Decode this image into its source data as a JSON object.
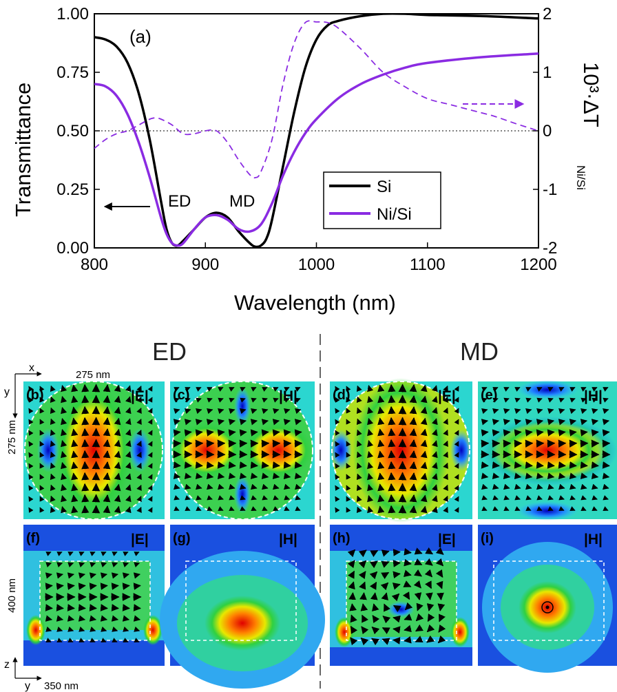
{
  "chart_data": {
    "type": "line",
    "panel_label": "(a)",
    "xlabel": "Wavelength (nm)",
    "ylabel": "Transmittance",
    "ylabel_right": "10³·ΔT",
    "ylabel_right_sub": "Ni/Si",
    "xlim": [
      800,
      1200
    ],
    "ylim": [
      0,
      1
    ],
    "ylim_right": [
      -2,
      2
    ],
    "x_ticks": [
      "800",
      "900",
      "1000",
      "1100",
      "1200"
    ],
    "y_ticks": [
      "0.00",
      "0.25",
      "0.50",
      "0.75",
      "1.00"
    ],
    "y_ticks_right": [
      "-2",
      "-1",
      "0",
      "1",
      "2"
    ],
    "legend_position": "inside-right",
    "annotations": [
      "ED",
      "MD"
    ],
    "series": [
      {
        "name": "Si",
        "color": "#000000",
        "axis": "left",
        "x": [
          800,
          810,
          820,
          830,
          840,
          850,
          860,
          865,
          870,
          875,
          880,
          890,
          900,
          910,
          920,
          930,
          940,
          945,
          950,
          955,
          960,
          970,
          980,
          990,
          1000,
          1010,
          1020,
          1040,
          1060,
          1080,
          1100,
          1150,
          1200
        ],
        "y": [
          0.9,
          0.89,
          0.86,
          0.79,
          0.66,
          0.46,
          0.2,
          0.08,
          0.02,
          0.01,
          0.03,
          0.08,
          0.13,
          0.15,
          0.13,
          0.07,
          0.02,
          0.005,
          0.01,
          0.04,
          0.12,
          0.35,
          0.58,
          0.77,
          0.89,
          0.95,
          0.97,
          0.99,
          1.0,
          1.0,
          0.995,
          0.99,
          0.98
        ]
      },
      {
        "name": "Ni/Si",
        "color": "#8a2be2",
        "axis": "left",
        "x": [
          800,
          810,
          820,
          830,
          840,
          850,
          860,
          865,
          870,
          875,
          880,
          890,
          900,
          910,
          920,
          930,
          940,
          950,
          960,
          970,
          980,
          990,
          1000,
          1020,
          1040,
          1060,
          1080,
          1100,
          1150,
          1200
        ],
        "y": [
          0.7,
          0.69,
          0.65,
          0.57,
          0.45,
          0.3,
          0.13,
          0.06,
          0.02,
          0.01,
          0.02,
          0.08,
          0.13,
          0.14,
          0.12,
          0.08,
          0.07,
          0.1,
          0.19,
          0.31,
          0.41,
          0.49,
          0.55,
          0.64,
          0.7,
          0.74,
          0.77,
          0.79,
          0.815,
          0.83
        ]
      },
      {
        "name": "",
        "color": "#8a2be2",
        "style": "dashed",
        "axis": "right",
        "x": [
          800,
          810,
          820,
          830,
          840,
          850,
          855,
          860,
          870,
          880,
          890,
          900,
          910,
          920,
          930,
          940,
          945,
          950,
          960,
          970,
          980,
          990,
          1000,
          1010,
          1020,
          1040,
          1060,
          1080,
          1100,
          1120,
          1140,
          1160,
          1180,
          1200
        ],
        "y": [
          -0.3,
          -0.15,
          -0.05,
          0.0,
          0.1,
          0.2,
          0.22,
          0.2,
          0.1,
          -0.05,
          -0.05,
          0.0,
          0.0,
          -0.2,
          -0.5,
          -0.75,
          -0.8,
          -0.7,
          -0.15,
          0.8,
          1.5,
          1.85,
          1.86,
          1.85,
          1.75,
          1.4,
          1.0,
          0.75,
          0.55,
          0.45,
          0.35,
          0.25,
          0.12,
          0.0
        ]
      }
    ]
  },
  "field_maps": {
    "sections": [
      "ED",
      "MD"
    ],
    "top_row": [
      {
        "label": "(b)",
        "field": "|E|"
      },
      {
        "label": "(c)",
        "field": "|H|"
      },
      {
        "label": "(d)",
        "field": "|E|"
      },
      {
        "label": "(e)",
        "field": "|H|"
      }
    ],
    "bottom_row": [
      {
        "label": "(f)",
        "field": "|E|"
      },
      {
        "label": "(g)",
        "field": "|H|"
      },
      {
        "label": "(h)",
        "field": "|E|"
      },
      {
        "label": "(i)",
        "field": "|H|"
      }
    ],
    "dimensions": {
      "top_width": "275 nm",
      "top_height": "275 nm",
      "bottom_height": "400 nm",
      "bottom_width": "350 nm"
    },
    "axes": {
      "top_h": "x",
      "top_v": "y",
      "bottom_v": "z",
      "bottom_h": "y"
    }
  }
}
